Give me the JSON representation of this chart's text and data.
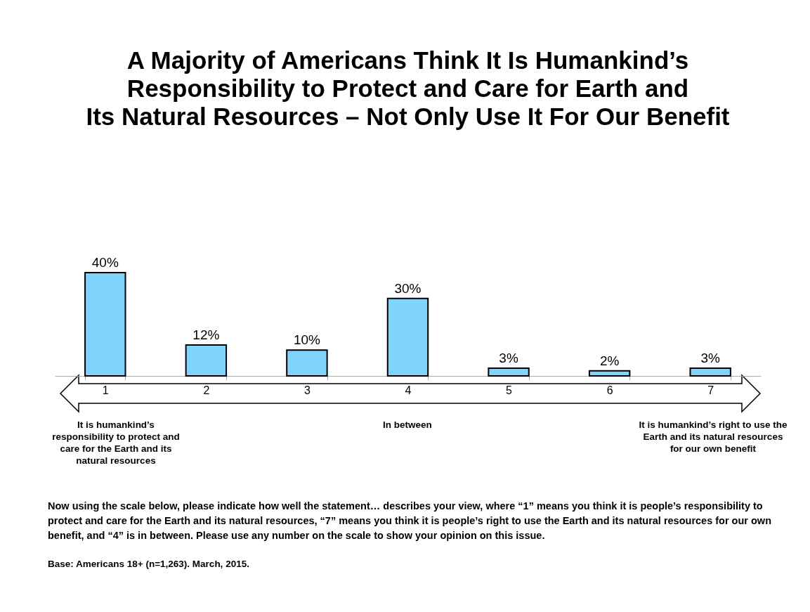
{
  "chart_data": {
    "type": "bar",
    "title": "A Majority of Americans Think It Is Humankind’s\nResponsibility to Protect and Care for Earth and\nIts Natural Resources – Not Only Use It For Our Benefit",
    "categories": [
      "1",
      "2",
      "3",
      "4",
      "5",
      "6",
      "7"
    ],
    "values": [
      40,
      12,
      10,
      30,
      3,
      2,
      3
    ],
    "value_labels": [
      "40%",
      "12%",
      "10%",
      "30%",
      "3%",
      "2%",
      "3%"
    ],
    "color": "#80d4fc",
    "annotations": [
      "It is humankind’s responsibility to protect and care for the Earth and its natural resources",
      "In between",
      "It is humankind’s right to use the Earth and its natural resources for our own benefit",
      "Now using the scale below, please indicate how well the statement… describes your view, where “1” means you think it is people’s responsibility to protect and care for the Earth and its natural resources, “7” means you think it is people’s right to use the Earth and its natural resources for our own benefit, and “4” is in between. Please use any number on the scale to show your opinion on this issue.",
      "Base: Americans 18+ (n=1,263). March, 2015."
    ]
  }
}
